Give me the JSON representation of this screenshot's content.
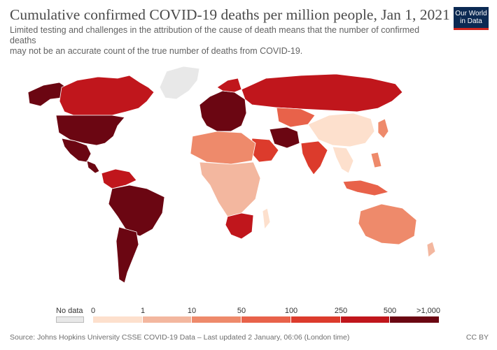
{
  "header": {
    "title": "Cumulative confirmed COVID-19 deaths per million people, Jan 1, 2021",
    "subtitle_line1": "Limited testing and challenges in the attribution of the cause of death means that the number of confirmed deaths",
    "subtitle_line2": "may not be an accurate count of the true number of deaths from COVID-19.",
    "logo_line1": "Our World",
    "logo_line2": "in Data"
  },
  "legend": {
    "nodata_label": "No data",
    "nodata_color": "#e8e8e8",
    "labels": [
      "0",
      "1",
      "10",
      "50",
      "100",
      "250",
      "500",
      ">1,000"
    ],
    "colors": [
      "#fde0cd",
      "#f3b79f",
      "#ee8a6b",
      "#e8624a",
      "#dc3b2c",
      "#c0161c",
      "#6b0612"
    ]
  },
  "regions": [
    {
      "name": "North America (USA)",
      "color": "#6b0612"
    },
    {
      "name": "Canada",
      "color": "#c0161c"
    },
    {
      "name": "Alaska",
      "color": "#6b0612"
    },
    {
      "name": "Greenland",
      "color": "#e8e8e8"
    },
    {
      "name": "Mexico",
      "color": "#6b0612"
    },
    {
      "name": "Brazil",
      "color": "#6b0612"
    },
    {
      "name": "Argentina",
      "color": "#6b0612"
    },
    {
      "name": "Europe",
      "color": "#6b0612"
    },
    {
      "name": "Russia",
      "color": "#c0161c"
    },
    {
      "name": "Africa",
      "color": "#f3b79f"
    },
    {
      "name": "South Africa",
      "color": "#c0161c"
    },
    {
      "name": "China",
      "color": "#fde0cd"
    },
    {
      "name": "India",
      "color": "#dc3b2c"
    },
    {
      "name": "Iran",
      "color": "#6b0612"
    },
    {
      "name": "Australia",
      "color": "#ee8a6b"
    }
  ],
  "footer": {
    "source": "Source: Johns Hopkins University CSSE COVID-19 Data – Last updated 2 January, 06:06 (London time)",
    "license": "CC BY"
  }
}
